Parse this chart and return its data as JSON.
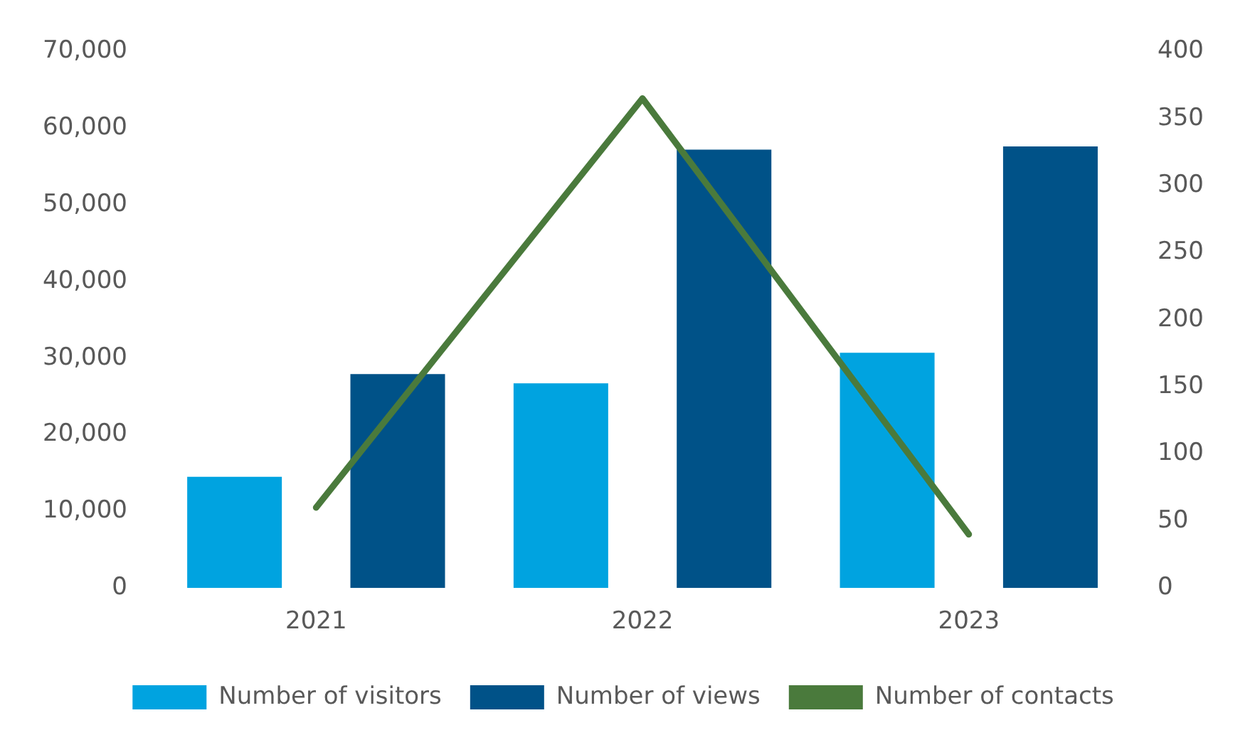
{
  "chart_data": {
    "type": "bar",
    "categories": [
      "2021",
      "2022",
      "2023"
    ],
    "series": [
      {
        "name": "Number of visitors",
        "color": "#00a3e0",
        "values": [
          14500,
          26700,
          30700
        ]
      },
      {
        "name": "Number of views",
        "color": "#005288",
        "values": [
          27900,
          57200,
          57600
        ]
      },
      {
        "name": "Number of contacts",
        "type": "line",
        "axis": "y2",
        "color": "#4a7a3c",
        "values": [
          60,
          365,
          40
        ]
      }
    ],
    "ylim": [
      0,
      70000
    ],
    "yticks": [
      {
        "value": 0,
        "label": "0"
      },
      {
        "value": 10000,
        "label": "10,000"
      },
      {
        "value": 20000,
        "label": "20,000"
      },
      {
        "value": 30000,
        "label": "30,000"
      },
      {
        "value": 40000,
        "label": "40,000"
      },
      {
        "value": 50000,
        "label": "50,000"
      },
      {
        "value": 60000,
        "label": "60,000"
      },
      {
        "value": 70000,
        "label": "70,000"
      }
    ],
    "y2lim": [
      0,
      400
    ],
    "y2ticks": [
      0,
      50,
      100,
      150,
      200,
      250,
      300,
      350,
      400
    ],
    "grid": false,
    "legend": "bottom",
    "marker": "none"
  }
}
